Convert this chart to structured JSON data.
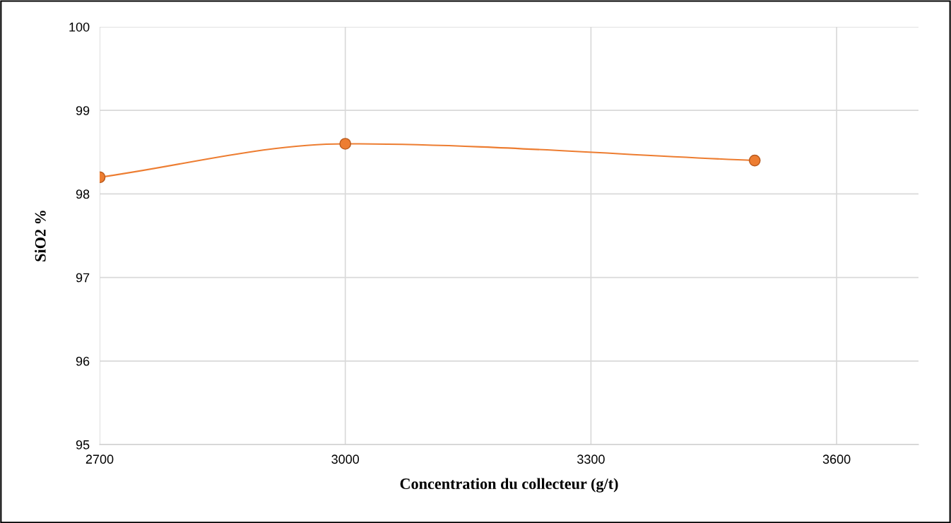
{
  "chart_data": {
    "type": "line",
    "xlabel": "Concentration du collecteur (g/t)",
    "ylabel": "SiO2 %",
    "x": [
      2700,
      3000,
      3500
    ],
    "series": [
      {
        "color": "#ed7d31",
        "values": [
          98.2,
          98.6,
          98.4
        ]
      }
    ],
    "xlim": [
      2700,
      3700
    ],
    "xticks": [
      2700,
      3000,
      3300,
      3600
    ],
    "ylim": [
      95,
      100
    ],
    "yticks": [
      95,
      96,
      97,
      98,
      99,
      100
    ],
    "grid": true,
    "marker": "circle",
    "line_style": "solid"
  }
}
